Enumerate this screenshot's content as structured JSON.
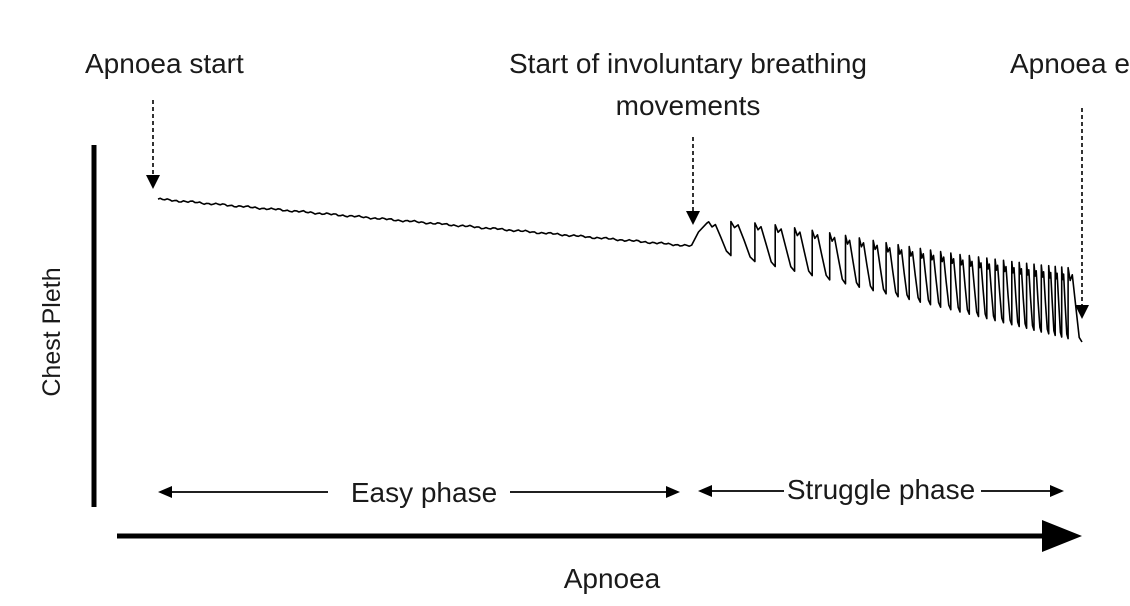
{
  "chart_data": {
    "type": "line",
    "xlabel": "Apnoea",
    "ylabel": "Chest Pleth",
    "grid": false,
    "axis_tick_labels": false,
    "x_range": [
      0,
      100
    ],
    "y_range": [
      0,
      100
    ],
    "annotations": [
      {
        "id": "apnoea_start",
        "text": "Apnoea start",
        "x": 0
      },
      {
        "id": "involuntary",
        "text_lines": [
          "Start of involuntary breathing",
          "movements"
        ],
        "x": 57.9
      },
      {
        "id": "apnoea_end",
        "text": "Apnoea end",
        "x": 100
      }
    ],
    "phases": [
      {
        "label": "Easy phase",
        "x_start": 0,
        "x_end": 57.9
      },
      {
        "label": "Struggle phase",
        "x_start": 57.9,
        "x_end": 100
      }
    ],
    "series": [
      {
        "baseline": {
          "x": [
            0,
            57.9,
            100
          ],
          "y": [
            92.4,
            76.9,
            45.4
          ]
        },
        "oscillation_start_x": 57.9,
        "breathing_movement_peaks": {
          "x": [
            59.6,
            62.0,
            64.6,
            66.8,
            68.9,
            70.8,
            72.7,
            74.4,
            75.9,
            77.4,
            78.8,
            80.1,
            81.3,
            82.5,
            83.6,
            84.7,
            85.8,
            86.8,
            87.8,
            88.8,
            89.7,
            90.6,
            91.5,
            92.4,
            93.2,
            94.0,
            94.8,
            95.6,
            96.4,
            97.1,
            97.8,
            98.5
          ],
          "amplitude": [
            9.3,
            11.2,
            12.7,
            13.7,
            14.3,
            14.9,
            15.5,
            15.9,
            16.2,
            16.5,
            16.8,
            17.1,
            17.4,
            17.7,
            18.0,
            18.3,
            18.6,
            18.9,
            19.3,
            19.6,
            19.9,
            20.2,
            20.5,
            20.8,
            21.1,
            21.4,
            21.7,
            22.0,
            22.4,
            22.7,
            23.0,
            23.3
          ]
        }
      }
    ]
  }
}
